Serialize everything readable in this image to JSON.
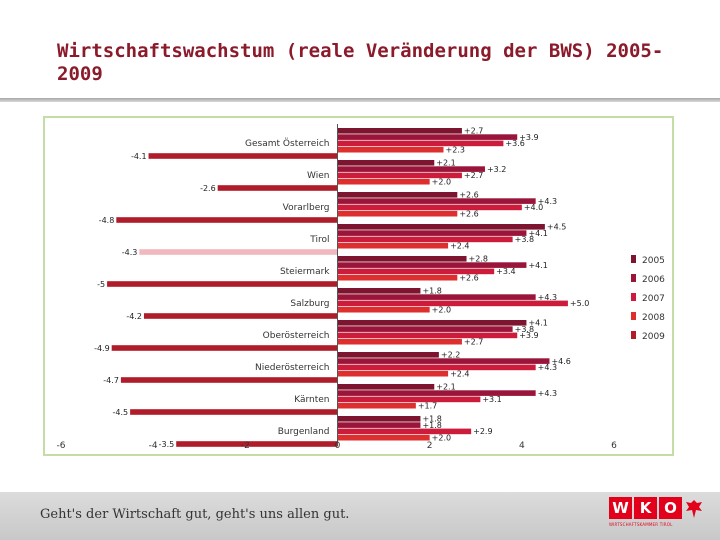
{
  "slide": {
    "title": "Wirtschaftswachstum (reale Veränderung der BWS) 2005-2009",
    "footer_slogan": "Geht's der Wirtschaft gut, geht's uns allen gut.",
    "logo": {
      "letters": [
        "W",
        "K",
        "O"
      ],
      "subtext": "WIRTSCHAFTSKAMMER TIROL"
    }
  },
  "chart_data": {
    "type": "bar",
    "orientation": "horizontal",
    "title": "",
    "xlabel": "",
    "ylabel": "",
    "xlim": [
      -6,
      6
    ],
    "x_ticks": [
      -6,
      -4,
      -2,
      0,
      2,
      4,
      6
    ],
    "categories": [
      "Gesamt Österreich",
      "Wien",
      "Vorarlberg",
      "Tirol",
      "Steiermark",
      "Salzburg",
      "Oberösterreich",
      "Niederösterreich",
      "Kärnten",
      "Burgenland"
    ],
    "series": [
      {
        "name": "2005",
        "color": "#7d1530",
        "values": [
          2.7,
          2.1,
          2.6,
          4.5,
          2.8,
          1.8,
          4.1,
          2.2,
          2.1,
          1.8
        ]
      },
      {
        "name": "2006",
        "color": "#99163a",
        "values": [
          3.9,
          3.2,
          4.3,
          4.1,
          4.1,
          4.3,
          3.8,
          4.6,
          4.3,
          1.8
        ]
      },
      {
        "name": "2007",
        "color": "#cc1b3b",
        "values": [
          3.6,
          2.7,
          4.0,
          3.8,
          3.4,
          5.0,
          3.9,
          4.3,
          3.1,
          2.9
        ]
      },
      {
        "name": "2008",
        "color": "#de2f2f",
        "values": [
          2.3,
          2.0,
          2.6,
          2.4,
          2.6,
          2.0,
          2.7,
          2.4,
          1.7,
          2.0
        ]
      },
      {
        "name": "2009",
        "color": "#b01c2a",
        "values": [
          -4.1,
          -2.6,
          -4.8,
          -4.3,
          -5,
          -4.2,
          -4.9,
          -4.7,
          -4.5,
          -3.5
        ]
      }
    ],
    "value_labels": [
      [
        "+2.7",
        "+3.9",
        "+3.6",
        "+2.3",
        "-4.1"
      ],
      [
        "+2.1",
        "+3.2",
        "+2.7",
        "+2.0",
        "-2.6"
      ],
      [
        "+2.6",
        "+4.3",
        "+4.0",
        "+2.6",
        "-4.8"
      ],
      [
        "+4.5",
        "+4.1",
        "+3.8",
        "+2.4",
        "-4.3"
      ],
      [
        "+2.8",
        "+4.1",
        "+3.4",
        "+2.6",
        "-5"
      ],
      [
        "+1.8",
        "+4.3",
        "+5.0",
        "+2.0",
        "-4.2"
      ],
      [
        "+4.1",
        "+3.8",
        "+3.9",
        "+2.7",
        "-4.9"
      ],
      [
        "+2.2",
        "+4.6",
        "+4.3",
        "+2.4",
        "-4.7"
      ],
      [
        "+2.1",
        "+4.3",
        "+3.1",
        "+1.7",
        "-4.5"
      ],
      [
        "+1.8",
        "+1.8",
        "+2.9",
        "+2.0",
        "-3.5"
      ]
    ],
    "legend_position": "right",
    "grid": false,
    "highlight": {
      "category": "Tirol",
      "series": "2009",
      "color": "#f2b8bf"
    }
  }
}
